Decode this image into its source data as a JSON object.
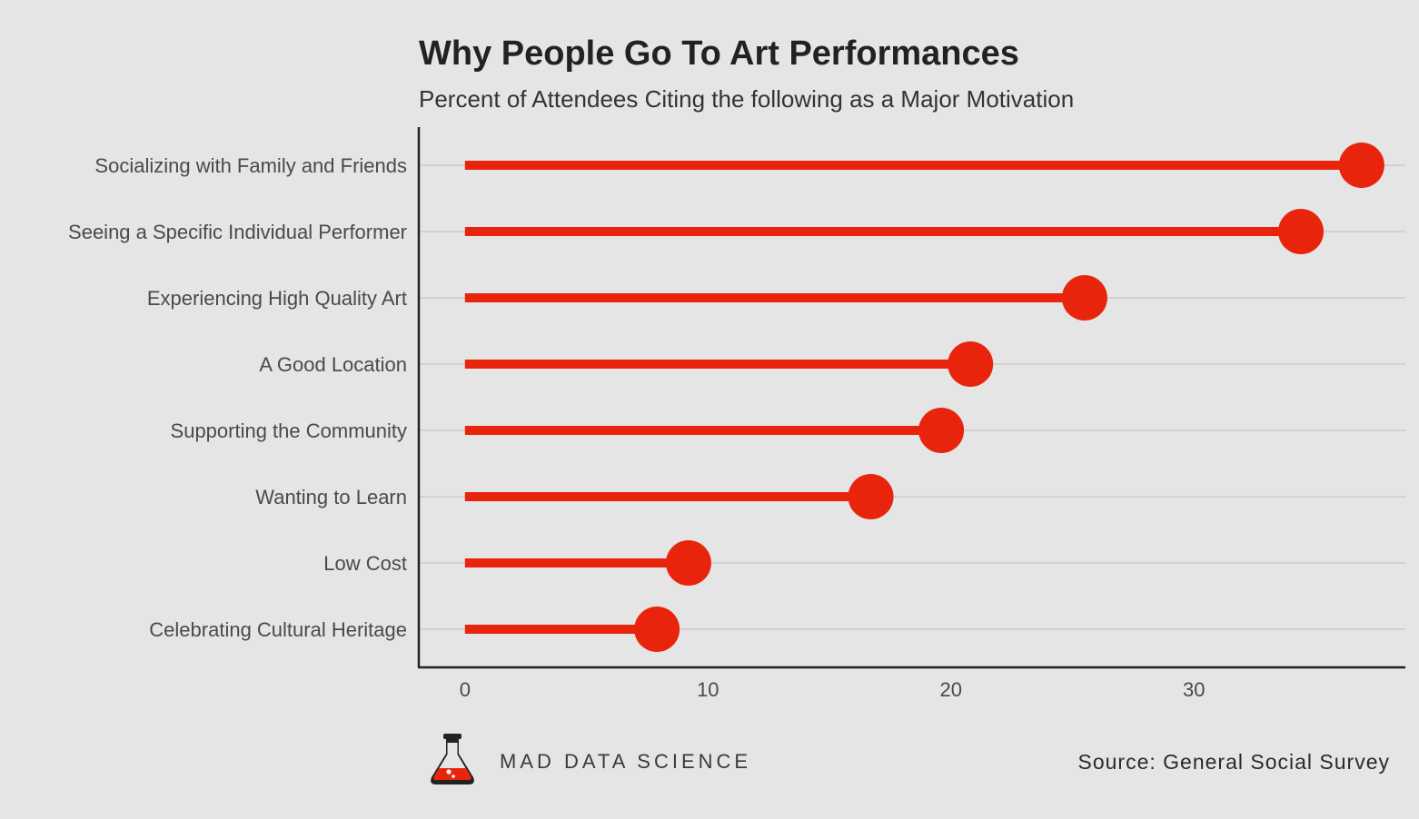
{
  "chart_data": {
    "type": "lollipop",
    "title": "Why People Go To Art Performances",
    "subtitle": "Percent of Attendees Citing the following as a Major Motivation",
    "categories": [
      "Socializing with Family and Friends",
      "Seeing a Specific Individual Performer",
      "Experiencing High Quality Art",
      "A Good Location",
      "Supporting the Community",
      "Wanting to Learn",
      "Low Cost",
      "Celebrating Cultural Heritage"
    ],
    "values": [
      36.9,
      34.4,
      25.5,
      20.8,
      19.6,
      16.7,
      9.2,
      7.9
    ],
    "xticks": [
      0,
      10,
      20,
      30
    ],
    "xlim": [
      -1.9,
      38.7
    ],
    "grid": "horizontal",
    "colors": {
      "accent": "#e8250c",
      "axis": "#222222",
      "grid": "#bdbdbd",
      "background": "#e5e5e5"
    }
  },
  "footer": {
    "brand": "MAD DATA SCIENCE",
    "source": "Source: General Social Survey",
    "logo_icon": "flask-icon"
  }
}
